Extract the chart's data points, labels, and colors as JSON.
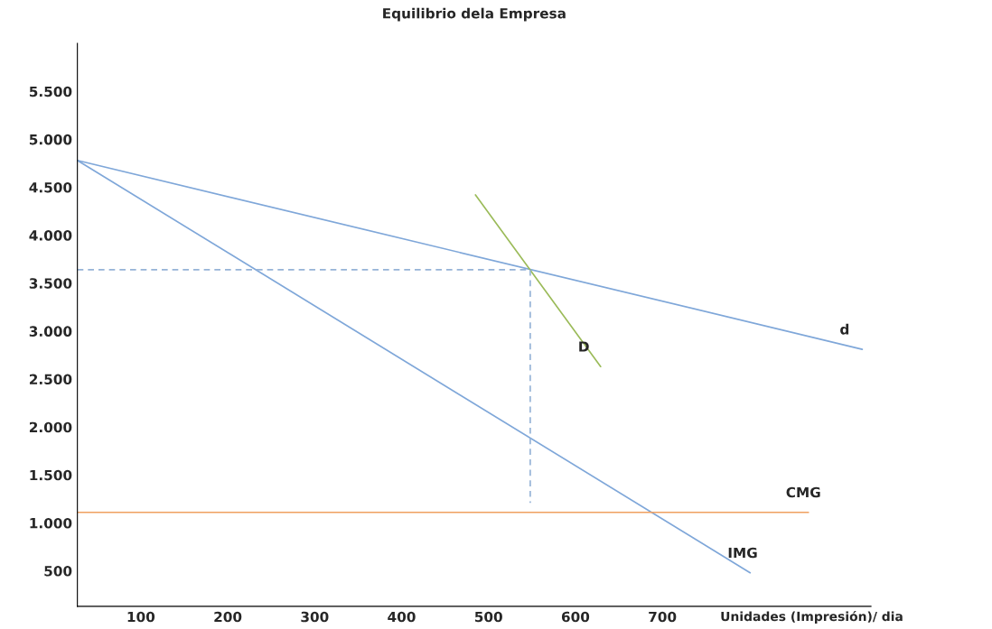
{
  "chart_data": {
    "type": "line",
    "title": "Equilibrio dela Empresa",
    "xlabel": "Unidades (Impresión)/ dia",
    "series": [
      {
        "name": "d",
        "color": "#7fa7d9",
        "x": [
          27,
          930
        ],
        "values": [
          4780,
          2810
        ]
      },
      {
        "name": "IMG",
        "color": "#7fa7d9",
        "x": [
          27,
          801
        ],
        "values": [
          4780,
          480
        ]
      },
      {
        "name": "D",
        "color": "#9bbb59",
        "x": [
          485,
          629
        ],
        "values": [
          4420,
          2630
        ]
      },
      {
        "name": "CMG",
        "color": "#f0a060",
        "x": [
          27,
          868
        ],
        "values": [
          1110,
          1110
        ]
      },
      {
        "color": "#95b3d7",
        "line_style": "dashed",
        "x": [
          27,
          548
        ],
        "values": [
          3640,
          3640
        ]
      },
      {
        "color": "#95b3d7",
        "line_style": "dashed",
        "x": [
          548,
          548
        ],
        "values": [
          3640,
          1210
        ]
      }
    ],
    "xlim": [
      27,
      940
    ],
    "ylim": [
      130,
      6000
    ],
    "xticks": [
      100,
      200,
      300,
      400,
      500,
      600,
      700
    ],
    "yticks": [
      {
        "value": 500,
        "label": "500"
      },
      {
        "value": 1000,
        "label": "1.000"
      },
      {
        "value": 1500,
        "label": "1.500"
      },
      {
        "value": 2000,
        "label": "2.000"
      },
      {
        "value": 2500,
        "label": "2.500"
      },
      {
        "value": 3000,
        "label": "3.000"
      },
      {
        "value": 3500,
        "label": "3.500"
      },
      {
        "value": 4000,
        "label": "4.000"
      },
      {
        "value": 4500,
        "label": "4.500"
      },
      {
        "value": 5000,
        "label": "5.000"
      },
      {
        "value": 5500,
        "label": "5.500"
      }
    ],
    "grid": false,
    "legend": false,
    "marker": "none",
    "line_style": "solid"
  }
}
